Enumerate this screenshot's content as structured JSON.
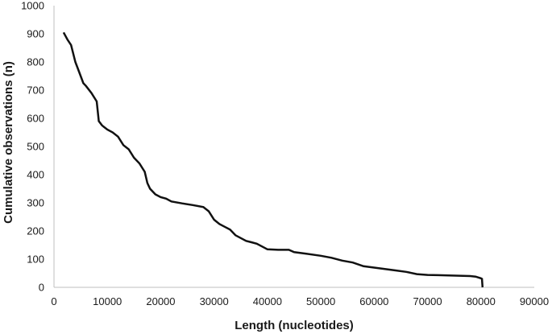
{
  "chart_data": {
    "type": "line",
    "title": "",
    "xlabel": "Length (nucleotides)",
    "ylabel": "Cumulative observations (n)",
    "xlim": [
      0,
      90000
    ],
    "ylim": [
      0,
      1000
    ],
    "xticks": [
      0,
      10000,
      20000,
      30000,
      40000,
      50000,
      60000,
      70000,
      80000,
      90000
    ],
    "yticks": [
      0,
      100,
      200,
      300,
      400,
      500,
      600,
      700,
      800,
      900,
      1000
    ],
    "grid": false,
    "legend": "none",
    "line_color": "#111111",
    "series": [
      {
        "x": [
          1800,
          2500,
          3200,
          4000,
          4800,
          5500,
          6000,
          7000,
          8000,
          8400,
          9000,
          10000,
          11000,
          12000,
          13000,
          14000,
          15000,
          16000,
          17000,
          17500,
          18000,
          19000,
          20000,
          21000,
          22000,
          24000,
          26000,
          28000,
          29000,
          30000,
          31000,
          32000,
          33000,
          34000,
          35000,
          36000,
          37000,
          38000,
          39000,
          40000,
          42000,
          44000,
          45000,
          47000,
          50000,
          52000,
          54000,
          56000,
          58000,
          60000,
          62000,
          64000,
          66000,
          68000,
          70000,
          72000,
          74000,
          76000,
          78000,
          79000,
          80000,
          80200,
          80300
        ],
        "y": [
          905,
          880,
          860,
          800,
          760,
          725,
          715,
          690,
          660,
          590,
          575,
          560,
          550,
          535,
          505,
          490,
          460,
          440,
          410,
          370,
          350,
          330,
          320,
          315,
          305,
          298,
          292,
          285,
          270,
          240,
          225,
          215,
          205,
          185,
          175,
          165,
          160,
          155,
          145,
          135,
          133,
          133,
          125,
          120,
          112,
          105,
          95,
          88,
          75,
          70,
          65,
          60,
          55,
          47,
          44,
          43,
          42,
          41,
          40,
          38,
          32,
          30,
          0
        ]
      }
    ]
  }
}
